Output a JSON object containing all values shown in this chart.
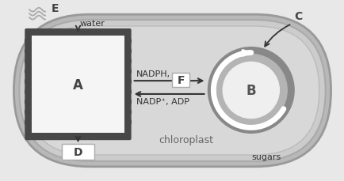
{
  "bg_color": "#e8e8e8",
  "chloroplast_fill1": "#b8b8b8",
  "chloroplast_fill2": "#cccccc",
  "chloroplast_fill3": "#d8d8d8",
  "thylakoid_dark": "#484848",
  "thylakoid_light": "#f5f5f5",
  "calvin_ring1": "#888888",
  "calvin_ring2": "#b4b4b4",
  "calvin_inner": "#efefef",
  "arrow_color": "#333333",
  "label_A": "A",
  "label_B": "B",
  "label_C": "C",
  "label_D": "D",
  "label_E": "E",
  "label_F": "F",
  "text_water": "water",
  "text_chloroplast": "chloroplast",
  "text_sugars": "sugars",
  "text_nadph": "NADPH,",
  "text_nadp": "NADP⁺, ADP",
  "chloroplast_edge": "#999999",
  "white": "#ffffff",
  "light_gray": "#cccccc"
}
